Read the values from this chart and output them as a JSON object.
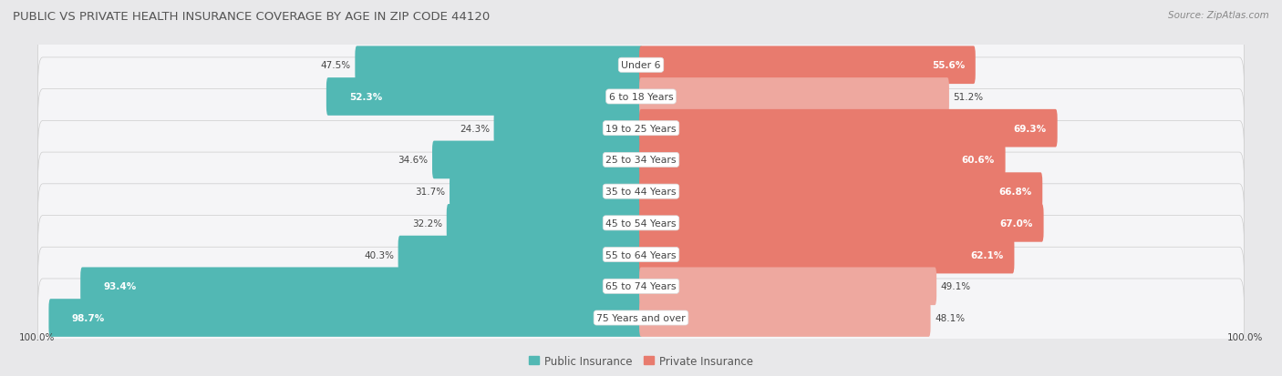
{
  "title": "PUBLIC VS PRIVATE HEALTH INSURANCE COVERAGE BY AGE IN ZIP CODE 44120",
  "source": "Source: ZipAtlas.com",
  "categories": [
    "Under 6",
    "6 to 18 Years",
    "19 to 25 Years",
    "25 to 34 Years",
    "35 to 44 Years",
    "45 to 54 Years",
    "55 to 64 Years",
    "65 to 74 Years",
    "75 Years and over"
  ],
  "public_values": [
    47.5,
    52.3,
    24.3,
    34.6,
    31.7,
    32.2,
    40.3,
    93.4,
    98.7
  ],
  "private_values": [
    55.6,
    51.2,
    69.3,
    60.6,
    66.8,
    67.0,
    62.1,
    49.1,
    48.1
  ],
  "public_color": "#52b8b4",
  "private_color": "#e87b6e",
  "private_color_light": "#eea89f",
  "bg_color": "#e8e8ea",
  "row_bg_color": "#f5f5f7",
  "title_color": "#555555",
  "source_color": "#888888",
  "label_color_dark": "#444444",
  "label_color_white": "#ffffff",
  "legend_public": "Public Insurance",
  "legend_private": "Private Insurance",
  "axis_label": "100.0%",
  "max_val": 100
}
